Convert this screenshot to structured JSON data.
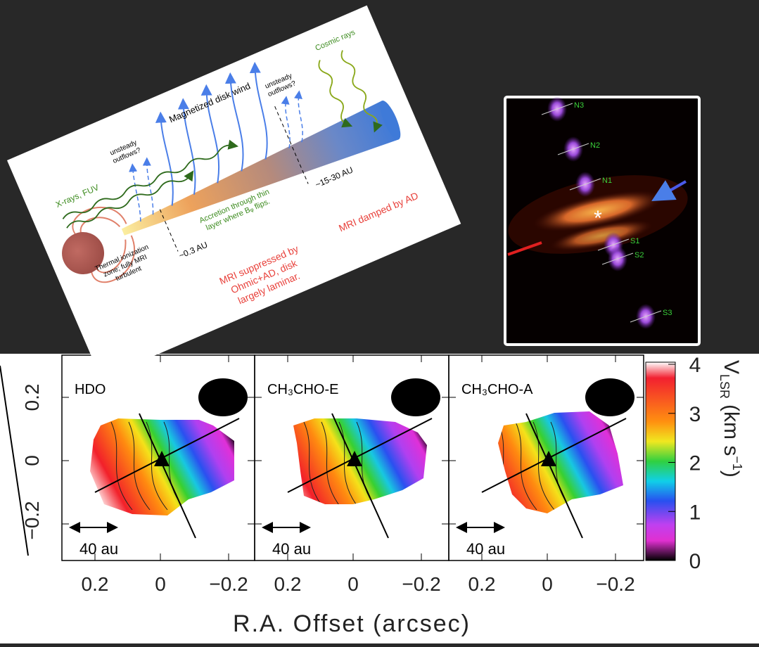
{
  "diagram": {
    "wind": "Magnetized disk wind",
    "outflows_left": [
      "unsteady",
      "outflows?"
    ],
    "outflows_right": [
      "unsteady",
      "outflows?"
    ],
    "cosmic_rays": "Cosmic rays",
    "xrays": "X-rays, FUV",
    "outer_radius": "~15-30 AU",
    "inner_radius": "~0.3 AU",
    "accretion": [
      "Accretion through thin",
      "layer where Bᵩ flips."
    ],
    "thermal": [
      "Thermal ionization",
      "zone; fully MRI",
      "turbulent"
    ],
    "mri_damped": "MRI damped by AD",
    "mri_suppressed": [
      "MRI suppressed by",
      "Ohmic+AD, disk",
      "largely laminar."
    ]
  },
  "jet_image": {
    "knots": [
      "N3",
      "N2",
      "N1",
      "S1",
      "S2",
      "S3"
    ],
    "star": "*"
  },
  "maps": {
    "panels": [
      {
        "name": "HDO"
      },
      {
        "name": "CH₃CHO-E"
      },
      {
        "name": "CH₃CHO-A"
      }
    ],
    "scale_bar": "40 au",
    "x_ticks": [
      "0.2",
      "0",
      "−0.2"
    ],
    "y_ticks": [
      "0.2",
      "0",
      "−0.2"
    ],
    "x_title": "R.A. Offset (arcsec)",
    "colorbar": {
      "ticks": [
        "4",
        "3",
        "2",
        "1",
        "0"
      ],
      "label_main": "V",
      "label_sub": "LSR",
      "label_unit": "(km s",
      "label_sup": "−1",
      "label_close": ")"
    }
  }
}
